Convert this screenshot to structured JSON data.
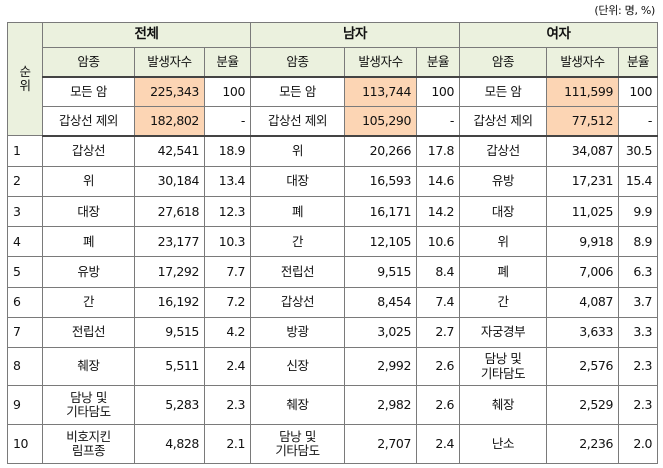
{
  "unit_note": "(단위: 명, %)",
  "header": {
    "rank_label": "순\n위",
    "groups": [
      "전체",
      "남자",
      "여자"
    ],
    "cols": [
      "암종",
      "발생자수",
      "분율"
    ]
  },
  "summary": [
    {
      "total": {
        "name": "모든 암",
        "count": "225,343",
        "share": "100"
      },
      "male": {
        "name": "모든 암",
        "count": "113,744",
        "share": "100"
      },
      "female": {
        "name": "모든 암",
        "count": "111,599",
        "share": "100"
      }
    },
    {
      "total": {
        "name": "갑상선 제외",
        "count": "182,802",
        "share": "-"
      },
      "male": {
        "name": "갑상선 제외",
        "count": "105,290",
        "share": "-"
      },
      "female": {
        "name": "갑상선 제외",
        "count": "77,512",
        "share": "-"
      }
    }
  ],
  "rows": [
    {
      "rank": "1",
      "total": {
        "name": "갑상선",
        "count": "42,541",
        "share": "18.9"
      },
      "male": {
        "name": "위",
        "count": "20,266",
        "share": "17.8"
      },
      "female": {
        "name": "갑상선",
        "count": "34,087",
        "share": "30.5"
      }
    },
    {
      "rank": "2",
      "total": {
        "name": "위",
        "count": "30,184",
        "share": "13.4"
      },
      "male": {
        "name": "대장",
        "count": "16,593",
        "share": "14.6"
      },
      "female": {
        "name": "유방",
        "count": "17,231",
        "share": "15.4"
      }
    },
    {
      "rank": "3",
      "total": {
        "name": "대장",
        "count": "27,618",
        "share": "12.3"
      },
      "male": {
        "name": "폐",
        "count": "16,171",
        "share": "14.2"
      },
      "female": {
        "name": "대장",
        "count": "11,025",
        "share": "9.9"
      }
    },
    {
      "rank": "4",
      "total": {
        "name": "폐",
        "count": "23,177",
        "share": "10.3"
      },
      "male": {
        "name": "간",
        "count": "12,105",
        "share": "10.6"
      },
      "female": {
        "name": "위",
        "count": "9,918",
        "share": "8.9"
      }
    },
    {
      "rank": "5",
      "total": {
        "name": "유방",
        "count": "17,292",
        "share": "7.7"
      },
      "male": {
        "name": "전립선",
        "count": "9,515",
        "share": "8.4"
      },
      "female": {
        "name": "폐",
        "count": "7,006",
        "share": "6.3"
      }
    },
    {
      "rank": "6",
      "total": {
        "name": "간",
        "count": "16,192",
        "share": "7.2"
      },
      "male": {
        "name": "갑상선",
        "count": "8,454",
        "share": "7.4"
      },
      "female": {
        "name": "간",
        "count": "4,087",
        "share": "3.7"
      }
    },
    {
      "rank": "7",
      "total": {
        "name": "전립선",
        "count": "9,515",
        "share": "4.2"
      },
      "male": {
        "name": "방광",
        "count": "3,025",
        "share": "2.7"
      },
      "female": {
        "name": "자궁경부",
        "count": "3,633",
        "share": "3.3"
      }
    },
    {
      "rank": "8",
      "total": {
        "name": "췌장",
        "count": "5,511",
        "share": "2.4"
      },
      "male": {
        "name": "신장",
        "count": "2,992",
        "share": "2.6"
      },
      "female": {
        "name": "담낭 및\n기타담도",
        "count": "2,576",
        "share": "2.3"
      }
    },
    {
      "rank": "9",
      "total": {
        "name": "담낭 및\n기타담도",
        "count": "5,283",
        "share": "2.3"
      },
      "male": {
        "name": "췌장",
        "count": "2,982",
        "share": "2.6"
      },
      "female": {
        "name": "췌장",
        "count": "2,529",
        "share": "2.3"
      }
    },
    {
      "rank": "10",
      "total": {
        "name": "비호지킨\n림프종",
        "count": "4,828",
        "share": "2.1"
      },
      "male": {
        "name": "담낭 및\n기타담도",
        "count": "2,707",
        "share": "2.4"
      },
      "female": {
        "name": "난소",
        "count": "2,236",
        "share": "2.0"
      }
    }
  ]
}
